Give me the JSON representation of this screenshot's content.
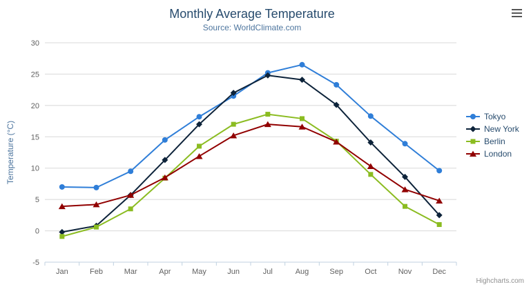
{
  "chart": {
    "title": "Monthly Average Temperature",
    "subtitle": "Source: WorldClimate.com",
    "credit": "Highcharts.com",
    "export_menu_icon": "hamburger-menu"
  },
  "chart_data": {
    "type": "line",
    "title": "Monthly Average Temperature",
    "subtitle": "Source: WorldClimate.com",
    "categories": [
      "Jan",
      "Feb",
      "Mar",
      "Apr",
      "May",
      "Jun",
      "Jul",
      "Aug",
      "Sep",
      "Oct",
      "Nov",
      "Dec"
    ],
    "xlabel": "",
    "ylabel": "Temperature (°C)",
    "ylim": [
      -5,
      30
    ],
    "ytick_step": 5,
    "grid": true,
    "legend_position": "right",
    "colors": {
      "title": "#274b6d",
      "subtitle": "#4d759e",
      "axis_labels": "#606060",
      "gridline": "#d8d8d8",
      "axis_line": "#c0d0e0"
    },
    "series": [
      {
        "name": "Tokyo",
        "color": "#2f7ed8",
        "marker": "circle",
        "values": [
          7.0,
          6.9,
          9.5,
          14.5,
          18.2,
          21.5,
          25.2,
          26.5,
          23.3,
          18.3,
          13.9,
          9.6
        ]
      },
      {
        "name": "New York",
        "color": "#0d233a",
        "marker": "diamond",
        "values": [
          -0.2,
          0.8,
          5.7,
          11.3,
          17.0,
          22.0,
          24.8,
          24.1,
          20.1,
          14.1,
          8.6,
          2.5
        ]
      },
      {
        "name": "Berlin",
        "color": "#8bbc21",
        "marker": "square",
        "values": [
          -0.9,
          0.6,
          3.5,
          8.4,
          13.5,
          17.0,
          18.6,
          17.9,
          14.3,
          9.0,
          3.9,
          1.0
        ]
      },
      {
        "name": "London",
        "color": "#910000",
        "marker": "triangle",
        "values": [
          3.9,
          4.2,
          5.7,
          8.5,
          11.9,
          15.2,
          17.0,
          16.6,
          14.2,
          10.3,
          6.6,
          4.8
        ]
      }
    ]
  }
}
